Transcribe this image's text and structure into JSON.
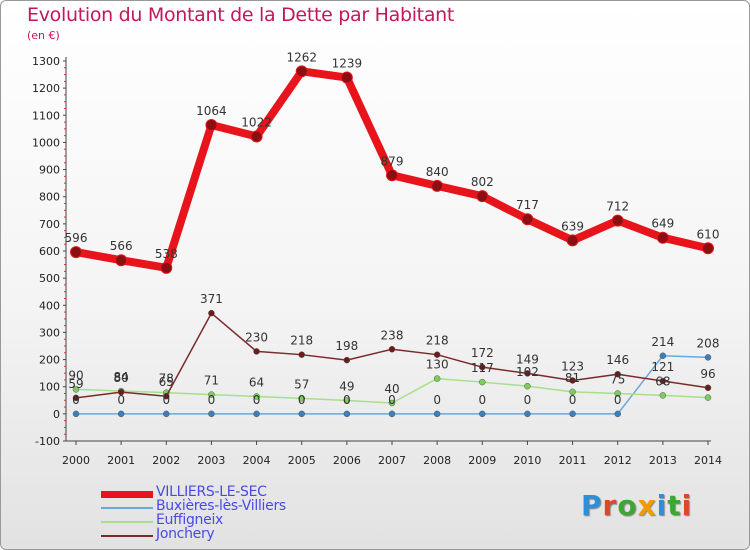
{
  "header": {
    "title": "Evolution du Montant de la Dette par Habitant",
    "subtitle": "(en €)"
  },
  "logo": {
    "text": "Proxiti",
    "letter_colors": [
      "#2b8fd9",
      "#e0442b",
      "#3fa535",
      "#f29a00",
      "#2b8fd9",
      "#3fa535",
      "#e0442b"
    ]
  },
  "chart_data": {
    "type": "line",
    "title": "Evolution du Montant de la Dette par Habitant",
    "subtitle": "(en €)",
    "xlabel": "",
    "ylabel": "",
    "x": [
      "2000",
      "2001",
      "2002",
      "2003",
      "2004",
      "2005",
      "2006",
      "2007",
      "2008",
      "2009",
      "2010",
      "2011",
      "2012",
      "2013",
      "2014"
    ],
    "ylim": [
      -100,
      1300
    ],
    "yticks": [
      -100,
      0,
      100,
      200,
      300,
      400,
      500,
      600,
      700,
      800,
      900,
      1000,
      1100,
      1200,
      1300
    ],
    "grid": false,
    "legend_position": "bottom-left",
    "series": [
      {
        "name": "VILLIERS-LE-SEC",
        "color": "#e8141b",
        "marker": "#8b0f12",
        "width": 8,
        "values": [
          596,
          566,
          538,
          1064,
          1022,
          1262,
          1239,
          879,
          840,
          802,
          717,
          639,
          712,
          649,
          610
        ],
        "labels": [
          "596",
          "566",
          "538",
          "1064",
          "1022",
          "1262",
          "1239",
          "879",
          "840",
          "802",
          "717",
          "639",
          "712",
          "649",
          "610"
        ]
      },
      {
        "name": "Buxières-lès-Villiers",
        "color": "#6aa8d8",
        "marker": "#3a7fc0",
        "width": 1.5,
        "values": [
          0,
          0,
          0,
          0,
          0,
          0,
          0,
          0,
          0,
          0,
          0,
          0,
          0,
          214,
          208
        ],
        "labels": [
          "0",
          "0",
          "0",
          "0",
          "0",
          "0",
          "0",
          "0",
          "0",
          "0",
          "0",
          "0",
          "0",
          "214",
          "208"
        ]
      },
      {
        "name": "Euffigneix",
        "color": "#a6e08a",
        "marker": "#7ccf5a",
        "width": 1.5,
        "values": [
          90,
          84,
          78,
          71,
          64,
          57,
          49,
          40,
          130,
          117,
          102,
          81,
          75,
          68,
          60
        ],
        "labels": [
          "90",
          "84",
          "78",
          "71",
          "64",
          "57",
          "49",
          "40",
          "130",
          "117",
          "102",
          "81",
          "75",
          "68",
          ""
        ]
      },
      {
        "name": "Jonchery",
        "color": "#7a2a2a",
        "marker": "#6b1c1c",
        "width": 1.5,
        "values": [
          59,
          80,
          65,
          371,
          230,
          218,
          198,
          238,
          218,
          172,
          149,
          123,
          146,
          121,
          96
        ],
        "labels": [
          "59",
          "80",
          "65",
          "371",
          "230",
          "218",
          "198",
          "238",
          "218",
          "172",
          "149",
          "123",
          "146",
          "121",
          "96"
        ]
      }
    ]
  }
}
